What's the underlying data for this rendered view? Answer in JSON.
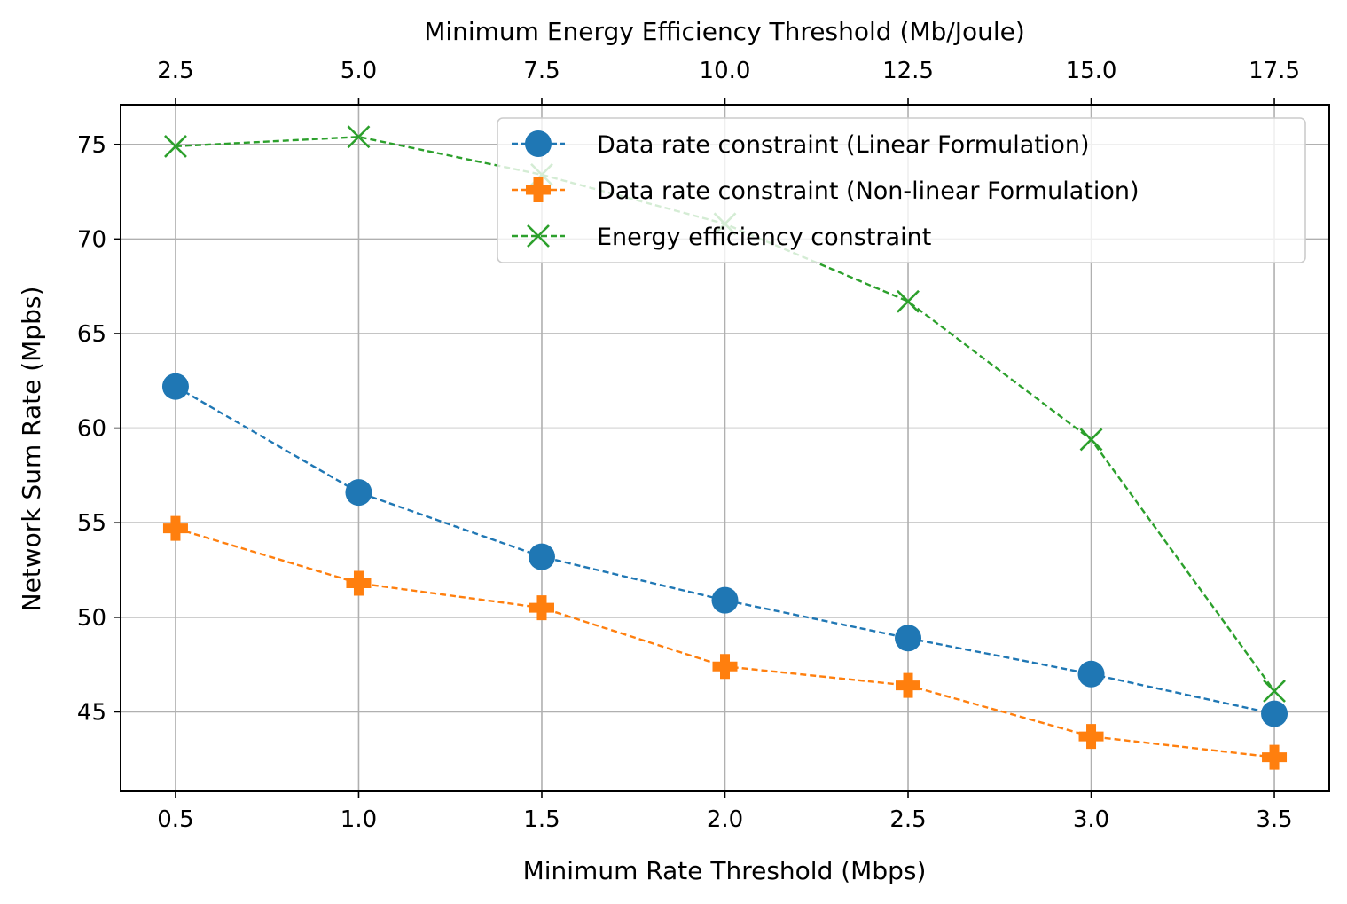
{
  "chart_data": {
    "type": "line",
    "x": [
      0.5,
      1.0,
      1.5,
      2.0,
      2.5,
      3.0,
      3.5
    ],
    "x_ticks": [
      "0.5",
      "1.0",
      "1.5",
      "2.0",
      "2.5",
      "3.0",
      "3.5"
    ],
    "xlabel": "Minimum Rate Threshold (Mbps)",
    "xlim": [
      0.35,
      3.65
    ],
    "top_axis": {
      "label": "Minimum Energy Efficiency Threshold (Mb/Joule)",
      "ticks": [
        "2.5",
        "5.0",
        "7.5",
        "10.0",
        "12.5",
        "15.0",
        "17.5"
      ]
    },
    "ylabel": "Network Sum Rate (Mpbs)",
    "ylim": [
      40.8,
      77.1
    ],
    "y_ticks": [
      45,
      50,
      55,
      60,
      65,
      70,
      75
    ],
    "grid": true,
    "legend_position": "top-right",
    "series": [
      {
        "name": "Data rate constraint (Linear Formulation)",
        "values": [
          62.2,
          56.6,
          53.2,
          50.9,
          48.9,
          47.0,
          44.9
        ],
        "color": "#1f77b4",
        "marker": "circle"
      },
      {
        "name": "Data rate constraint (Non-linear Formulation)",
        "values": [
          54.7,
          51.8,
          50.5,
          47.4,
          46.4,
          43.7,
          42.6
        ],
        "color": "#ff7f0e",
        "marker": "plus"
      },
      {
        "name": "Energy efficiency constraint",
        "values": [
          74.9,
          75.4,
          73.4,
          70.8,
          66.7,
          59.4,
          46.1
        ],
        "color": "#2ca02c",
        "marker": "x"
      }
    ]
  }
}
